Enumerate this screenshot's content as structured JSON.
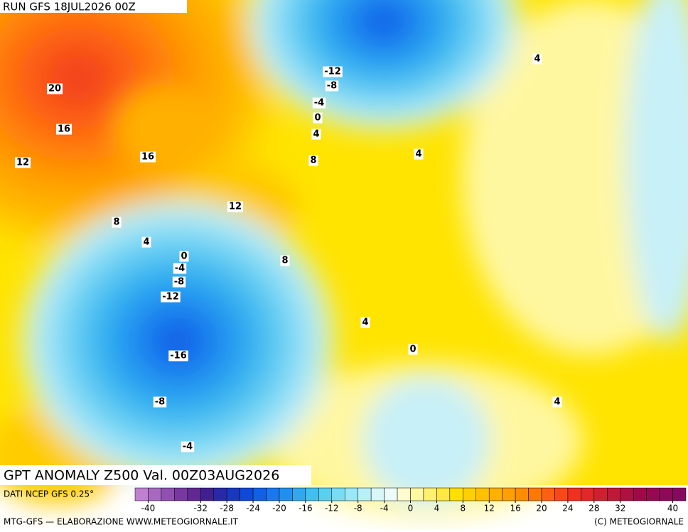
{
  "header": {
    "run": "RUN GFS 18JUL2026 00Z"
  },
  "title": "GPT ANOMALY Z500 Val. 00Z03AUG2026",
  "source": "DATI NCEP GFS 0.25°",
  "footer_left": "MTG-GFS — ELABORAZIONE WWW.METEOGIORNALE.IT",
  "footer_right": "(C) METEOGIORNALE",
  "contour_labels": [
    20,
    16,
    16,
    12,
    12,
    8,
    4,
    0,
    -4,
    -8,
    -12,
    -16,
    -8,
    -4,
    8,
    4,
    0,
    4,
    -12,
    -8,
    -4,
    0,
    4,
    8,
    4,
    4
  ],
  "colorbar": {
    "lim": [
      -42,
      42
    ],
    "ticks": [
      -40,
      -32,
      -28,
      -24,
      -20,
      -16,
      -12,
      -8,
      -4,
      0,
      4,
      8,
      12,
      16,
      20,
      24,
      28,
      32,
      40
    ],
    "colors": [
      "#c080d0",
      "#a868c0",
      "#9050b0",
      "#7838a0",
      "#602890",
      "#402090",
      "#2828a8",
      "#1838c0",
      "#1048d8",
      "#1060e8",
      "#1878f0",
      "#2090f0",
      "#30a8f0",
      "#40c0f0",
      "#58d0f0",
      "#78dcf4",
      "#98e8f8",
      "#b8f0f8",
      "#d8f8f8",
      "#ecfcfa",
      "#fffcd0",
      "#fff8a0",
      "#fff070",
      "#ffe840",
      "#ffe000",
      "#ffd000",
      "#ffc000",
      "#ffb000",
      "#ffa000",
      "#ff8c00",
      "#ff7800",
      "#ff6010",
      "#f84818",
      "#f03020",
      "#e02828",
      "#d02030",
      "#c01838",
      "#b01040",
      "#a00848",
      "#980850",
      "#900858",
      "#880860"
    ]
  }
}
